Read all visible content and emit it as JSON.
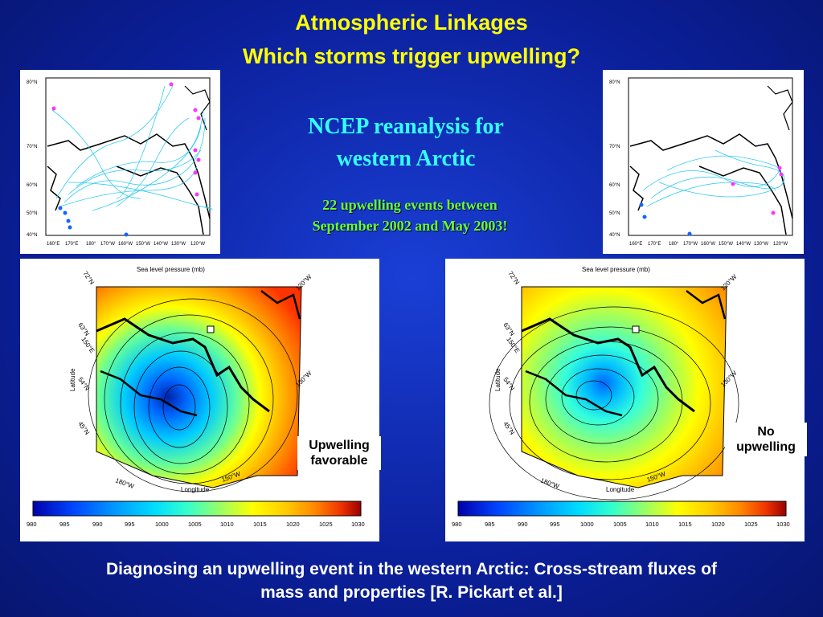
{
  "title": {
    "line1": "Atmospheric Linkages",
    "line2": "Which storms trigger upwelling?"
  },
  "ncep": {
    "line1": "NCEP reanalysis for",
    "line2": "western Arctic"
  },
  "events": {
    "line1": "22 upwelling events between",
    "line2": "September 2002 and May 2003!"
  },
  "track_map": {
    "lat_labels": [
      "80°N",
      "70°N",
      "60°N",
      "50°N",
      "40°N"
    ],
    "lon_labels": [
      "160°E",
      "170°E",
      "180°",
      "170°W",
      "160°W",
      "150°W",
      "140°W",
      "130°W",
      "120°W"
    ]
  },
  "slp_map": {
    "title": "Sea level pressure (mb)",
    "xlabel": "Longitude",
    "ylabel": "Latitude",
    "corner_labels": [
      "72°N",
      "63°N",
      "150°E",
      "54°N",
      "45°N",
      "180°W",
      "150°W",
      "130°W",
      "120°W",
      "160°W"
    ],
    "colorbar_ticks": [
      "980",
      "985",
      "990",
      "995",
      "1000",
      "1005",
      "1010",
      "1015",
      "1020",
      "1025",
      "1030"
    ],
    "colorbar_colors": [
      "#0000aa",
      "#0044ff",
      "#0099ff",
      "#00ddff",
      "#33ffcc",
      "#99ff66",
      "#ffff00",
      "#ffcc00",
      "#ff8800",
      "#ee3300",
      "#990000"
    ]
  },
  "left_label": {
    "line1": "Upwelling",
    "line2": "favorable"
  },
  "right_label": {
    "line1": "No",
    "line2": "upwelling"
  },
  "caption": {
    "line1": "Diagnosing an upwelling event in the western Arctic: Cross-stream fluxes of",
    "line2": "mass and properties [R. Pickart et al.]"
  }
}
